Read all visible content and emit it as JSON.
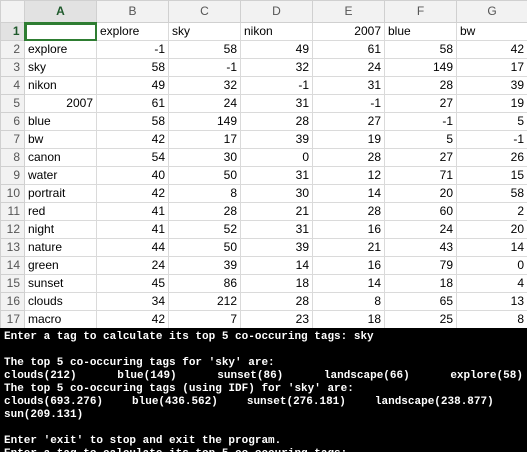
{
  "spreadsheet": {
    "corner": "",
    "columns": [
      "A",
      "B",
      "C",
      "D",
      "E",
      "F",
      "G"
    ],
    "active_cell": "A1",
    "header_row": {
      "num": "1",
      "cells": [
        "",
        "explore",
        "sky",
        "nikon",
        "2007",
        "blue",
        "bw"
      ]
    },
    "rows": [
      {
        "num": "2",
        "cells": [
          "explore",
          "-1",
          "58",
          "49",
          "61",
          "58",
          "42"
        ]
      },
      {
        "num": "3",
        "cells": [
          "sky",
          "58",
          "-1",
          "32",
          "24",
          "149",
          "17"
        ]
      },
      {
        "num": "4",
        "cells": [
          "nikon",
          "49",
          "32",
          "-1",
          "31",
          "28",
          "39"
        ]
      },
      {
        "num": "5",
        "cells": [
          "2007",
          "61",
          "24",
          "31",
          "-1",
          "27",
          "19"
        ]
      },
      {
        "num": "6",
        "cells": [
          "blue",
          "58",
          "149",
          "28",
          "27",
          "-1",
          "5"
        ]
      },
      {
        "num": "7",
        "cells": [
          "bw",
          "42",
          "17",
          "39",
          "19",
          "5",
          "-1"
        ]
      },
      {
        "num": "8",
        "cells": [
          "canon",
          "54",
          "30",
          "0",
          "28",
          "27",
          "26"
        ]
      },
      {
        "num": "9",
        "cells": [
          "water",
          "40",
          "50",
          "31",
          "12",
          "71",
          "15"
        ]
      },
      {
        "num": "10",
        "cells": [
          "portrait",
          "42",
          "8",
          "30",
          "14",
          "20",
          "58"
        ]
      },
      {
        "num": "11",
        "cells": [
          "red",
          "41",
          "28",
          "21",
          "28",
          "60",
          "2"
        ]
      },
      {
        "num": "12",
        "cells": [
          "night",
          "41",
          "52",
          "31",
          "16",
          "24",
          "20"
        ]
      },
      {
        "num": "13",
        "cells": [
          "nature",
          "44",
          "50",
          "39",
          "21",
          "43",
          "14"
        ]
      },
      {
        "num": "14",
        "cells": [
          "green",
          "24",
          "39",
          "14",
          "16",
          "79",
          "0"
        ]
      },
      {
        "num": "15",
        "cells": [
          "sunset",
          "45",
          "86",
          "18",
          "14",
          "18",
          "4"
        ]
      },
      {
        "num": "16",
        "cells": [
          "clouds",
          "34",
          "212",
          "28",
          "8",
          "65",
          "13"
        ]
      },
      {
        "num": "17",
        "cells": [
          "macro",
          "42",
          "7",
          "23",
          "18",
          "25",
          "8"
        ]
      }
    ]
  },
  "terminal": {
    "prompt_line": "Enter a tag to calculate its top 5 co-occuring tags: sky",
    "top5_heading": "The top 5 co-occuring tags for 'sky' are:",
    "top5_items": [
      "clouds(212)",
      "blue(149)",
      "sunset(86)",
      "landscape(66)",
      "explore(58)"
    ],
    "idf_heading": "The top 5 co-occuring tags (using IDF) for 'sky' are:",
    "idf_items": [
      "clouds(693.276)",
      "blue(436.562)",
      "sunset(276.181)",
      "landscape(238.877)"
    ],
    "idf_overflow": "sun(209.131)",
    "exit_line": "Enter 'exit' to stop and exit the program.",
    "cut_line": "Enter a tag to calculate its top 5 co-occuring tags:"
  }
}
